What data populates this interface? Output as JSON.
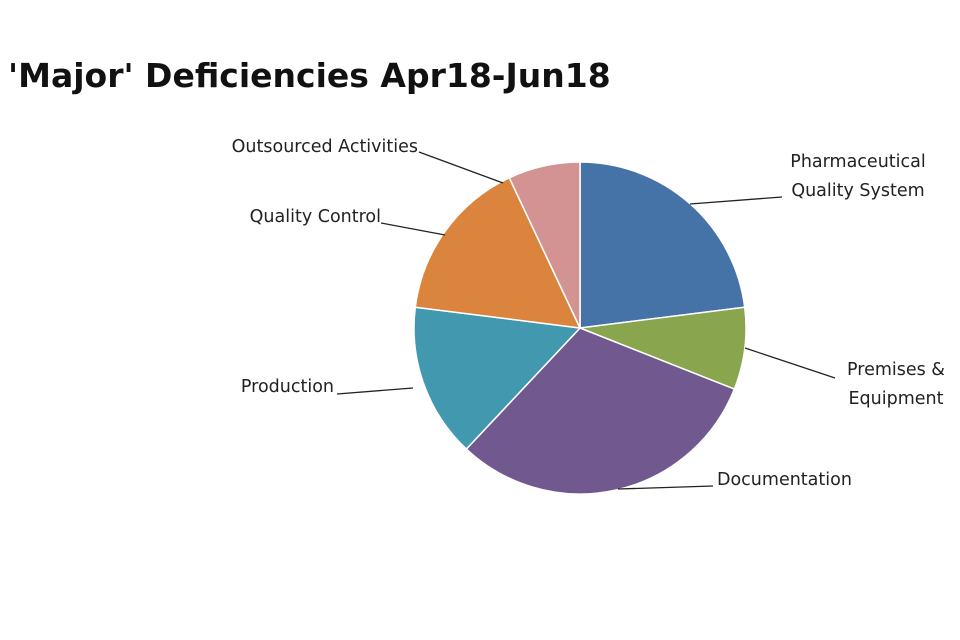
{
  "chart_data": {
    "type": "pie",
    "title": "'Major' Deficiencies Apr18-Jun18",
    "categories": [
      "Pharmaceutical Quality System",
      "Premises & Equipment",
      "Documentation",
      "Production",
      "Quality Control",
      "Outsourced Activities"
    ],
    "values": [
      23,
      8,
      31,
      15,
      16,
      7
    ],
    "colors": [
      "#4572a7",
      "#89a54e",
      "#71588f",
      "#4198af",
      "#db843d",
      "#d39393"
    ]
  }
}
